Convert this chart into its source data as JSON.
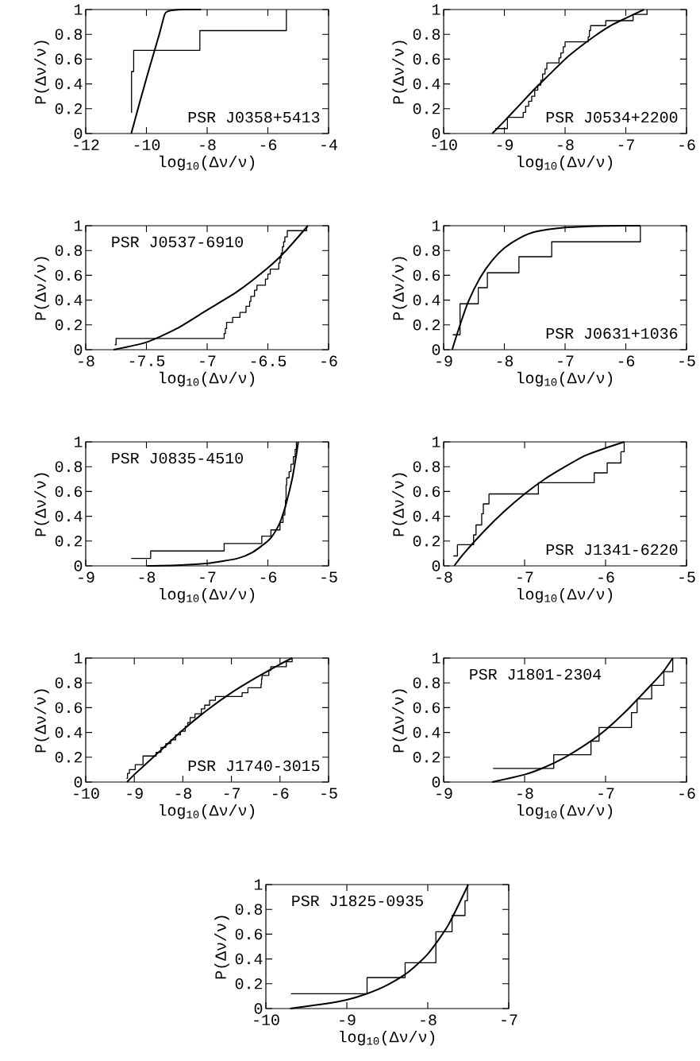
{
  "chart_data": [
    {
      "type": "step",
      "xlabel": "log$_{10}$(Δν/ν)",
      "ylabel": "P(Δν/ν)",
      "annotations": [
        "PSR J0358+5413"
      ],
      "xlim": [
        -12,
        -4
      ],
      "ylim": [
        0,
        1
      ],
      "xticks": [
        -12,
        -10,
        -8,
        -6,
        -4
      ],
      "yticks": [
        0,
        0.2,
        0.4,
        0.6,
        0.8,
        1
      ],
      "series": [
        {
          "color": "#000000",
          "x": [
            -10.5,
            -10.49,
            -10.42,
            -8.24,
            -5.39
          ],
          "values": [
            0.17,
            0.5,
            0.67,
            0.83,
            1.0
          ]
        },
        {
          "type": "line",
          "color": "#000000",
          "x": [
            -10.5,
            -10.2,
            -9.9,
            -9.6,
            -9.4,
            -9.3,
            -9.1,
            -8.8,
            -8.2
          ],
          "values": [
            0,
            0.27,
            0.53,
            0.78,
            0.96,
            0.985,
            0.995,
            1,
            1
          ]
        }
      ]
    },
    {
      "type": "step",
      "xlabel": "log$_{10}$(Δν/ν)",
      "ylabel": "P(Δν/ν)",
      "annotations": [
        "PSR J0534+2200"
      ],
      "xlim": [
        -10,
        -6
      ],
      "ylim": [
        0,
        1
      ],
      "xticks": [
        -10,
        -9,
        -8,
        -7,
        -6
      ],
      "yticks": [
        0,
        0.2,
        0.4,
        0.6,
        0.8,
        1
      ],
      "series": [
        {
          "color": "#000000",
          "x": [
            -9.15,
            -8.95,
            -8.69,
            -8.65,
            -8.6,
            -8.55,
            -8.5,
            -8.45,
            -8.4,
            -8.37,
            -8.33,
            -8.3,
            -8.1,
            -8.07,
            -8.03,
            -8.0,
            -7.62,
            -7.6,
            -7.58,
            -7.33,
            -6.88,
            -6.65
          ],
          "values": [
            0.04,
            0.13,
            0.17,
            0.22,
            0.26,
            0.3,
            0.35,
            0.39,
            0.43,
            0.48,
            0.52,
            0.57,
            0.61,
            0.65,
            0.7,
            0.74,
            0.78,
            0.83,
            0.87,
            0.91,
            0.96,
            1.0
          ]
        },
        {
          "type": "line",
          "color": "#000000",
          "x": [
            -9.2,
            -9,
            -8.75,
            -8.5,
            -8.25,
            -8,
            -7.75,
            -7.5,
            -7.25,
            -7,
            -6.7
          ],
          "values": [
            0,
            0.1,
            0.23,
            0.36,
            0.48,
            0.6,
            0.7,
            0.79,
            0.87,
            0.93,
            1.0
          ]
        }
      ]
    },
    {
      "type": "step",
      "xlabel": "log$_{10}$(Δν/ν)",
      "ylabel": "P(Δν/ν)",
      "annotations": [
        "PSR J0537-6910"
      ],
      "xlim": [
        -8,
        -6
      ],
      "ylim": [
        0,
        1
      ],
      "xticks": [
        -8,
        -7.5,
        -7,
        -6.5,
        -6
      ],
      "yticks": [
        0,
        0.2,
        0.4,
        0.6,
        0.8,
        1
      ],
      "series": [
        {
          "color": "#000000",
          "x": [
            -7.76,
            -7.75,
            -6.86,
            -6.85,
            -6.84,
            -6.79,
            -6.73,
            -6.68,
            -6.65,
            -6.64,
            -6.61,
            -6.59,
            -6.52,
            -6.5,
            -6.48,
            -6.41,
            -6.4,
            -6.39,
            -6.38,
            -6.37,
            -6.36,
            -6.34,
            -6.18
          ],
          "values": [
            0.04,
            0.09,
            0.13,
            0.17,
            0.22,
            0.26,
            0.3,
            0.35,
            0.39,
            0.43,
            0.48,
            0.52,
            0.57,
            0.61,
            0.65,
            0.7,
            0.74,
            0.78,
            0.83,
            0.87,
            0.91,
            0.96,
            1.0
          ]
        },
        {
          "type": "line",
          "color": "#000000",
          "x": [
            -7.77,
            -7.5,
            -7.25,
            -7,
            -6.75,
            -6.5,
            -6.35,
            -6.17
          ],
          "values": [
            0,
            0.06,
            0.17,
            0.32,
            0.47,
            0.66,
            0.8,
            1.0
          ]
        }
      ]
    },
    {
      "type": "step",
      "xlabel": "log$_{10}$(Δν/ν)",
      "ylabel": "P(Δν/ν)",
      "annotations": [
        "PSR J0631+1036"
      ],
      "xlim": [
        -9,
        -5
      ],
      "ylim": [
        0,
        1
      ],
      "xticks": [
        -9,
        -8,
        -7,
        -6,
        -5
      ],
      "yticks": [
        0,
        0.2,
        0.4,
        0.6,
        0.8,
        1
      ],
      "series": [
        {
          "color": "#000000",
          "x": [
            -8.85,
            -8.73,
            -8.43,
            -8.28,
            -7.76,
            -7.22,
            -5.76
          ],
          "values": [
            0.12,
            0.37,
            0.5,
            0.62,
            0.75,
            0.87,
            1.0
          ]
        },
        {
          "type": "line",
          "color": "#000000",
          "x": [
            -8.86,
            -8.75,
            -8.6,
            -8.4,
            -8.2,
            -8,
            -7.75,
            -7.5,
            -7,
            -6.5,
            -6,
            -5.76
          ],
          "values": [
            0,
            0.17,
            0.38,
            0.58,
            0.72,
            0.82,
            0.9,
            0.95,
            0.985,
            0.997,
            1,
            1
          ]
        }
      ]
    },
    {
      "type": "step",
      "xlabel": "log$_{10}$(Δν/ν)",
      "ylabel": "P(Δν/ν)",
      "annotations": [
        "PSR J0835-4510"
      ],
      "xlim": [
        -9,
        -5
      ],
      "ylim": [
        0,
        1
      ],
      "xticks": [
        -9,
        -8,
        -7,
        -6,
        -5
      ],
      "yticks": [
        0,
        0.2,
        0.4,
        0.6,
        0.8,
        1
      ],
      "series": [
        {
          "color": "#000000",
          "x": [
            -8.25,
            -7.93,
            -6.72,
            -6.1,
            -5.95,
            -5.8,
            -5.75,
            -5.72,
            -5.71,
            -5.7,
            -5.69,
            -5.65,
            -5.62,
            -5.58,
            -5.55,
            -5.53
          ],
          "values": [
            0.06,
            0.12,
            0.18,
            0.24,
            0.29,
            0.35,
            0.41,
            0.47,
            0.53,
            0.65,
            0.71,
            0.76,
            0.82,
            0.88,
            0.94,
            1.0
          ]
        },
        {
          "type": "line",
          "color": "#000000",
          "x": [
            -8,
            -7.5,
            -7,
            -6.5,
            -6.25,
            -6,
            -5.9,
            -5.8,
            -5.7,
            -5.6,
            -5.53,
            -5.5
          ],
          "values": [
            0,
            0.005,
            0.02,
            0.06,
            0.11,
            0.2,
            0.26,
            0.35,
            0.5,
            0.7,
            0.9,
            1.0
          ]
        }
      ]
    },
    {
      "type": "step",
      "xlabel": "log$_{10}$(Δν/ν)",
      "ylabel": "P(Δν/ν)",
      "annotations": [
        "PSR J1341-6220"
      ],
      "xlim": [
        -8,
        -5
      ],
      "ylim": [
        0,
        1
      ],
      "xticks": [
        -8,
        -7,
        -6,
        -5
      ],
      "yticks": [
        0,
        0.2,
        0.4,
        0.6,
        0.8,
        1
      ],
      "series": [
        {
          "color": "#000000",
          "x": [
            -7.88,
            -7.83,
            -7.63,
            -7.6,
            -7.53,
            -7.51,
            -7.44,
            -6.83,
            -6.14,
            -5.98,
            -5.81,
            -5.77
          ],
          "values": [
            0.08,
            0.17,
            0.25,
            0.33,
            0.42,
            0.5,
            0.58,
            0.67,
            0.75,
            0.83,
            0.92,
            1.0
          ]
        },
        {
          "type": "line",
          "color": "#000000",
          "x": [
            -7.87,
            -7.75,
            -7.5,
            -7.25,
            -7,
            -6.75,
            -6.5,
            -6.25,
            -6,
            -5.77
          ],
          "values": [
            0,
            0.1,
            0.28,
            0.44,
            0.58,
            0.7,
            0.8,
            0.89,
            0.95,
            1.0
          ]
        }
      ]
    },
    {
      "type": "step",
      "xlabel": "log$_{10}$(Δν/ν)",
      "ylabel": "P(Δν/ν)",
      "annotations": [
        "PSR J1740-3015"
      ],
      "xlim": [
        -10,
        -5
      ],
      "ylim": [
        0,
        1
      ],
      "xticks": [
        -10,
        -9,
        -8,
        -7,
        -6,
        -5
      ],
      "yticks": [
        0,
        0.2,
        0.4,
        0.6,
        0.8,
        1
      ],
      "series": [
        {
          "color": "#000000",
          "x": [
            -9.16,
            -9.14,
            -9.1,
            -8.98,
            -8.82,
            -8.55,
            -8.45,
            -8.35,
            -8.25,
            -8.15,
            -8.05,
            -7.95,
            -7.9,
            -7.85,
            -7.75,
            -7.62,
            -7.55,
            -7.45,
            -7.33,
            -6.78,
            -6.66,
            -6.39,
            -6.38,
            -6.37,
            -6.23,
            -6.19,
            -5.87,
            -5.75
          ],
          "values": [
            0.03,
            0.07,
            0.1,
            0.14,
            0.21,
            0.24,
            0.28,
            0.31,
            0.34,
            0.38,
            0.41,
            0.45,
            0.48,
            0.52,
            0.55,
            0.59,
            0.62,
            0.66,
            0.69,
            0.72,
            0.76,
            0.79,
            0.83,
            0.86,
            0.9,
            0.93,
            0.97,
            1.0
          ]
        },
        {
          "type": "line",
          "color": "#000000",
          "x": [
            -9.15,
            -9,
            -8.5,
            -8,
            -7.5,
            -7,
            -6.5,
            -6,
            -5.75
          ],
          "values": [
            0,
            0.06,
            0.24,
            0.42,
            0.58,
            0.72,
            0.84,
            0.95,
            1.0
          ]
        }
      ]
    },
    {
      "type": "step",
      "xlabel": "log$_{10}$(Δν/ν)",
      "ylabel": "P(Δν/ν)",
      "annotations": [
        "PSR J1801-2304"
      ],
      "xlim": [
        -9,
        -6
      ],
      "ylim": [
        0,
        1
      ],
      "xticks": [
        -9,
        -8,
        -7,
        -6
      ],
      "yticks": [
        0,
        0.2,
        0.4,
        0.6,
        0.8,
        1
      ],
      "series": [
        {
          "color": "#000000",
          "x": [
            -8.39,
            -7.64,
            -7.18,
            -7.08,
            -6.68,
            -6.61,
            -6.43,
            -6.28,
            -6.17
          ],
          "values": [
            0.11,
            0.22,
            0.33,
            0.44,
            0.56,
            0.67,
            0.78,
            0.89,
            1.0
          ]
        },
        {
          "type": "line",
          "color": "#000000",
          "x": [
            -8.4,
            -8,
            -7.75,
            -7.5,
            -7.25,
            -7,
            -6.75,
            -6.5,
            -6.3,
            -6.17
          ],
          "values": [
            0,
            0.06,
            0.12,
            0.2,
            0.3,
            0.42,
            0.57,
            0.74,
            0.88,
            1.0
          ]
        }
      ]
    },
    {
      "type": "step",
      "xlabel": "log$_{10}$(Δν/ν)",
      "ylabel": "P(Δν/ν)",
      "annotations": [
        "PSR J1825-0935"
      ],
      "xlim": [
        -10,
        -7
      ],
      "ylim": [
        0,
        1
      ],
      "xticks": [
        -10,
        -9,
        -8,
        -7
      ],
      "yticks": [
        0,
        0.2,
        0.4,
        0.6,
        0.8,
        1
      ],
      "series": [
        {
          "color": "#000000",
          "x": [
            -9.69,
            -8.75,
            -8.28,
            -7.9,
            -7.7,
            -7.54,
            -7.51
          ],
          "values": [
            0.12,
            0.25,
            0.37,
            0.62,
            0.75,
            0.87,
            1.0
          ]
        },
        {
          "type": "line",
          "color": "#000000",
          "x": [
            -9.7,
            -9.25,
            -9,
            -8.75,
            -8.5,
            -8.25,
            -8,
            -7.75,
            -7.5
          ],
          "values": [
            0,
            0.04,
            0.07,
            0.12,
            0.19,
            0.29,
            0.44,
            0.67,
            1.0
          ]
        }
      ]
    }
  ]
}
